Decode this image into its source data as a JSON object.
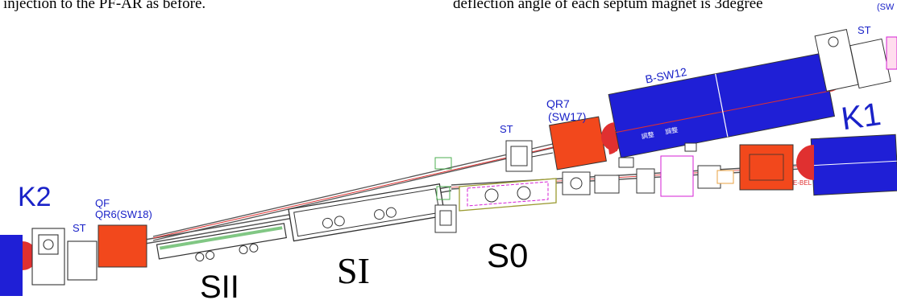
{
  "text": {
    "caption_left": "injection to the PF-AR as before.",
    "caption_right": "deflection angle of each septum magnet is 3degree"
  },
  "labels": {
    "k1": "K1",
    "k2": "K2",
    "s0": "S0",
    "si": "SI",
    "sii": "SII",
    "bsw12": "B-SW12",
    "qr7": "QR7",
    "sw17": "(SW17)",
    "st": "ST",
    "qf": "QF",
    "qr6": "QR6(SW18)",
    "ebel": "E-BEL",
    "small1": "調整",
    "small2": "調整",
    "corner": "(SW"
  },
  "colors": {
    "magnet_blue": "#1f1fd6",
    "magnet_red": "#f2481c",
    "label_blue": "#1a22c8",
    "beam_red": "#e03030",
    "hardware": "#333333",
    "septum_green": "#4caf50",
    "magenta": "#d41fd4"
  }
}
